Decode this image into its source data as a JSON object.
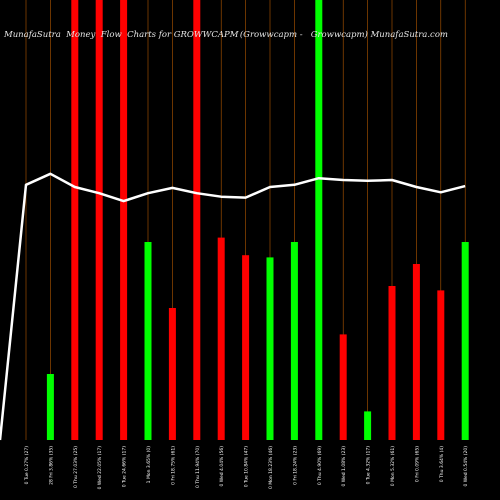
{
  "header": {
    "title_left": "MunafaSutra  Money  Flow  Charts for GROWWCAPM",
    "title_right": "(Growwcapm -   Growwcapm) MunafaSutra.com"
  },
  "colors": {
    "background": "#000000",
    "up": "#00ff00",
    "down": "#ff0000",
    "line": "#ffffff",
    "grid": "#b35900"
  },
  "chart_data": {
    "type": "bar",
    "y_range": [
      0,
      100
    ],
    "categories": [
      "0 Tue 0.27% (27)",
      "28 Fri 3.86% (35)",
      "0 Thu 27.03% (25)",
      "0 Wed 22.05% (17)",
      "0 Tue 24.66% (17)",
      "1 Mon 3.65% (0)",
      "0 Fri 18.75% (61)",
      "0 Thu 11.94% (70)",
      "0 Wed 4.04% (56)",
      "0 Tue 10.84% (47)",
      "0 Mon 18.23% (46)",
      "0 Fri 18.24% (23)",
      "0 Thu 4.90% (69)",
      "0 Wed 1.08% (23)",
      "0 Tue 4.32% (17)",
      "0 Mon 5.32% (61)",
      "0 Fri 0.09% (65)",
      "0 Thu 3.64% (4)",
      "0 Wed 0.54% (20)"
    ],
    "series": [
      {
        "type": "bar",
        "values": [
          0,
          15,
          100,
          100,
          100,
          45,
          30,
          100,
          46,
          42,
          41.5,
          45,
          100,
          24,
          6.5,
          35,
          40,
          34,
          45
        ],
        "colors": [
          "red",
          "green",
          "red",
          "red",
          "red",
          "green",
          "red",
          "red",
          "red",
          "red",
          "green",
          "green",
          "green",
          "red",
          "green",
          "red",
          "red",
          "red",
          "green"
        ]
      },
      {
        "type": "line",
        "values": [
          58,
          60.5,
          57.5,
          56.1,
          54.3,
          56.1,
          57.3,
          56.1,
          55.3,
          55.1,
          57.5,
          58,
          59.5,
          59.1,
          58.9,
          59.1,
          57.5,
          56.3,
          57.7
        ]
      }
    ]
  }
}
